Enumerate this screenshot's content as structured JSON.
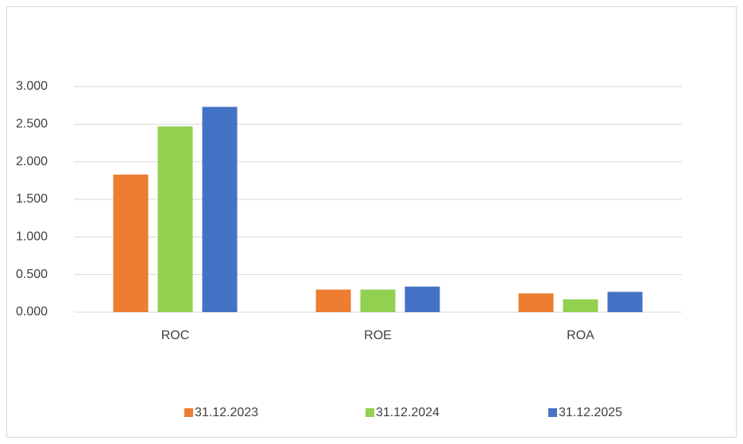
{
  "chart_data": {
    "type": "bar",
    "categories": [
      "ROC",
      "ROE",
      "ROA"
    ],
    "series": [
      {
        "name": "31.12.2023",
        "color": "#ed7d31",
        "values": [
          1.83,
          0.3,
          0.25
        ]
      },
      {
        "name": "31.12.2024",
        "color": "#92d050",
        "values": [
          2.47,
          0.3,
          0.17
        ]
      },
      {
        "name": "31.12.2025",
        "color": "#4472c4",
        "values": [
          2.73,
          0.34,
          0.27
        ]
      }
    ],
    "ylim": [
      0,
      3
    ],
    "yticks": [
      {
        "value": 0,
        "label": "0.000"
      },
      {
        "value": 0.5,
        "label": "0.500"
      },
      {
        "value": 1,
        "label": "1.000"
      },
      {
        "value": 1.5,
        "label": "1.500"
      },
      {
        "value": 2,
        "label": "2.000"
      },
      {
        "value": 2.5,
        "label": "2.500"
      },
      {
        "value": 3,
        "label": "3.000"
      }
    ],
    "grid": true,
    "legend": "bottom"
  }
}
